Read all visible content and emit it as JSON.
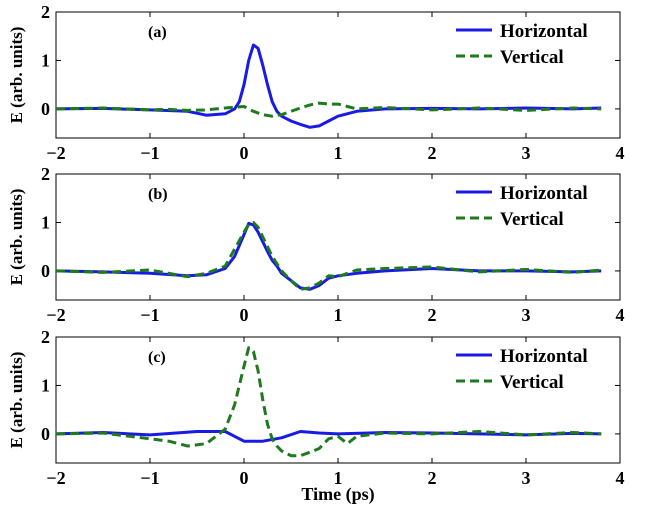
{
  "chart_data": {
    "type": "line",
    "xlabel": "Time (ps)",
    "ylabel": "E (arb. units)",
    "xlim": [
      -2,
      4
    ],
    "ylim": [
      -0.6,
      2
    ],
    "xticks": [
      -2,
      -1,
      0,
      1,
      2,
      3,
      4
    ],
    "yticks": [
      0,
      1,
      2
    ],
    "xtick_labels": [
      "−2",
      "−1",
      "0",
      "1",
      "2",
      "3",
      "4"
    ],
    "ytick_labels": [
      "0",
      "1",
      "2"
    ],
    "legend_position": "top-right",
    "colors": {
      "Horizontal": "#1a1ae6",
      "Vertical": "#1f7a1f"
    },
    "panels": [
      {
        "label": "(a)",
        "series": [
          {
            "name": "Horizontal",
            "style": "solid",
            "x": [
              -2,
              -1.5,
              -1,
              -0.6,
              -0.4,
              -0.2,
              -0.1,
              -0.05,
              0,
              0.05,
              0.1,
              0.15,
              0.2,
              0.25,
              0.3,
              0.35,
              0.4,
              0.5,
              0.6,
              0.7,
              0.8,
              0.9,
              1.0,
              1.2,
              1.5,
              2,
              2.5,
              3,
              3.5,
              3.8
            ],
            "y": [
              0,
              0.01,
              -0.02,
              -0.05,
              -0.13,
              -0.1,
              0,
              0.15,
              0.5,
              1.0,
              1.32,
              1.25,
              0.9,
              0.5,
              0.15,
              -0.05,
              -0.15,
              -0.25,
              -0.32,
              -0.38,
              -0.35,
              -0.25,
              -0.15,
              -0.05,
              0,
              0.01,
              0,
              0.02,
              0,
              0.02
            ]
          },
          {
            "name": "Vertical",
            "style": "dashed",
            "x": [
              -2,
              -1.5,
              -1,
              -0.8,
              -0.6,
              -0.4,
              -0.2,
              0,
              0.1,
              0.2,
              0.3,
              0.4,
              0.5,
              0.6,
              0.7,
              0.8,
              0.9,
              1.0,
              1.1,
              1.2,
              1.5,
              2,
              2.5,
              3,
              3.5,
              3.8
            ],
            "y": [
              0,
              0.02,
              -0.02,
              -0.01,
              -0.03,
              -0.02,
              0.02,
              0.05,
              -0.05,
              -0.12,
              -0.15,
              -0.12,
              -0.05,
              0.02,
              0.08,
              0.12,
              0.1,
              0.1,
              0.05,
              0,
              0.03,
              -0.02,
              0.02,
              -0.03,
              0.02,
              0
            ]
          }
        ]
      },
      {
        "label": "(b)",
        "series": [
          {
            "name": "Horizontal",
            "style": "solid",
            "x": [
              -2,
              -1.5,
              -1,
              -0.6,
              -0.4,
              -0.2,
              -0.1,
              0,
              0.05,
              0.1,
              0.15,
              0.2,
              0.25,
              0.3,
              0.35,
              0.4,
              0.5,
              0.6,
              0.7,
              0.8,
              0.9,
              1.0,
              1.2,
              1.5,
              2,
              2.5,
              3,
              3.5,
              3.8
            ],
            "y": [
              0,
              -0.02,
              -0.05,
              -0.1,
              -0.08,
              0.05,
              0.3,
              0.75,
              0.98,
              0.95,
              0.8,
              0.6,
              0.4,
              0.22,
              0.1,
              -0.05,
              -0.2,
              -0.35,
              -0.38,
              -0.3,
              -0.15,
              -0.1,
              -0.05,
              0,
              0.05,
              0,
              0,
              -0.02,
              0
            ]
          },
          {
            "name": "Vertical",
            "style": "dashed",
            "x": [
              -2,
              -1.5,
              -1,
              -0.6,
              -0.4,
              -0.2,
              -0.1,
              0,
              0.05,
              0.1,
              0.15,
              0.2,
              0.25,
              0.3,
              0.35,
              0.4,
              0.5,
              0.6,
              0.7,
              0.8,
              0.9,
              1.0,
              1.2,
              1.5,
              2,
              2.5,
              3,
              3.5,
              3.8
            ],
            "y": [
              0,
              -0.03,
              0.02,
              -0.12,
              -0.05,
              0.1,
              0.45,
              0.8,
              0.96,
              1.0,
              0.9,
              0.7,
              0.5,
              0.3,
              0.15,
              0,
              -0.2,
              -0.38,
              -0.35,
              -0.25,
              -0.1,
              -0.12,
              0.02,
              0.05,
              0.08,
              -0.02,
              0.03,
              -0.03,
              0.02
            ]
          }
        ]
      },
      {
        "label": "(c)",
        "series": [
          {
            "name": "Horizontal",
            "style": "solid",
            "x": [
              -2,
              -1.5,
              -1,
              -0.5,
              -0.2,
              0,
              0.2,
              0.4,
              0.6,
              0.8,
              1.0,
              1.5,
              2,
              2.5,
              3,
              3.5,
              3.8
            ],
            "y": [
              0,
              0.03,
              -0.02,
              0.05,
              0.05,
              -0.15,
              -0.15,
              -0.08,
              0.05,
              0.02,
              0,
              0.03,
              0.02,
              0,
              -0.02,
              0.01,
              0
            ]
          },
          {
            "name": "Vertical",
            "style": "dashed",
            "x": [
              -2,
              -1.5,
              -1,
              -0.8,
              -0.6,
              -0.4,
              -0.2,
              -0.1,
              0,
              0.05,
              0.1,
              0.15,
              0.2,
              0.25,
              0.3,
              0.35,
              0.4,
              0.5,
              0.6,
              0.7,
              0.8,
              0.9,
              1.0,
              1.1,
              1.2,
              1.5,
              2,
              2.5,
              3,
              3.5,
              3.8
            ],
            "y": [
              0,
              0.02,
              -0.1,
              -0.15,
              -0.25,
              -0.2,
              0.1,
              0.6,
              1.4,
              1.78,
              1.7,
              1.3,
              0.7,
              0.2,
              -0.1,
              -0.25,
              -0.35,
              -0.45,
              -0.45,
              -0.38,
              -0.3,
              -0.1,
              -0.05,
              -0.2,
              -0.05,
              0.02,
              0,
              0.05,
              -0.02,
              0.03,
              0
            ]
          }
        ]
      }
    ]
  }
}
